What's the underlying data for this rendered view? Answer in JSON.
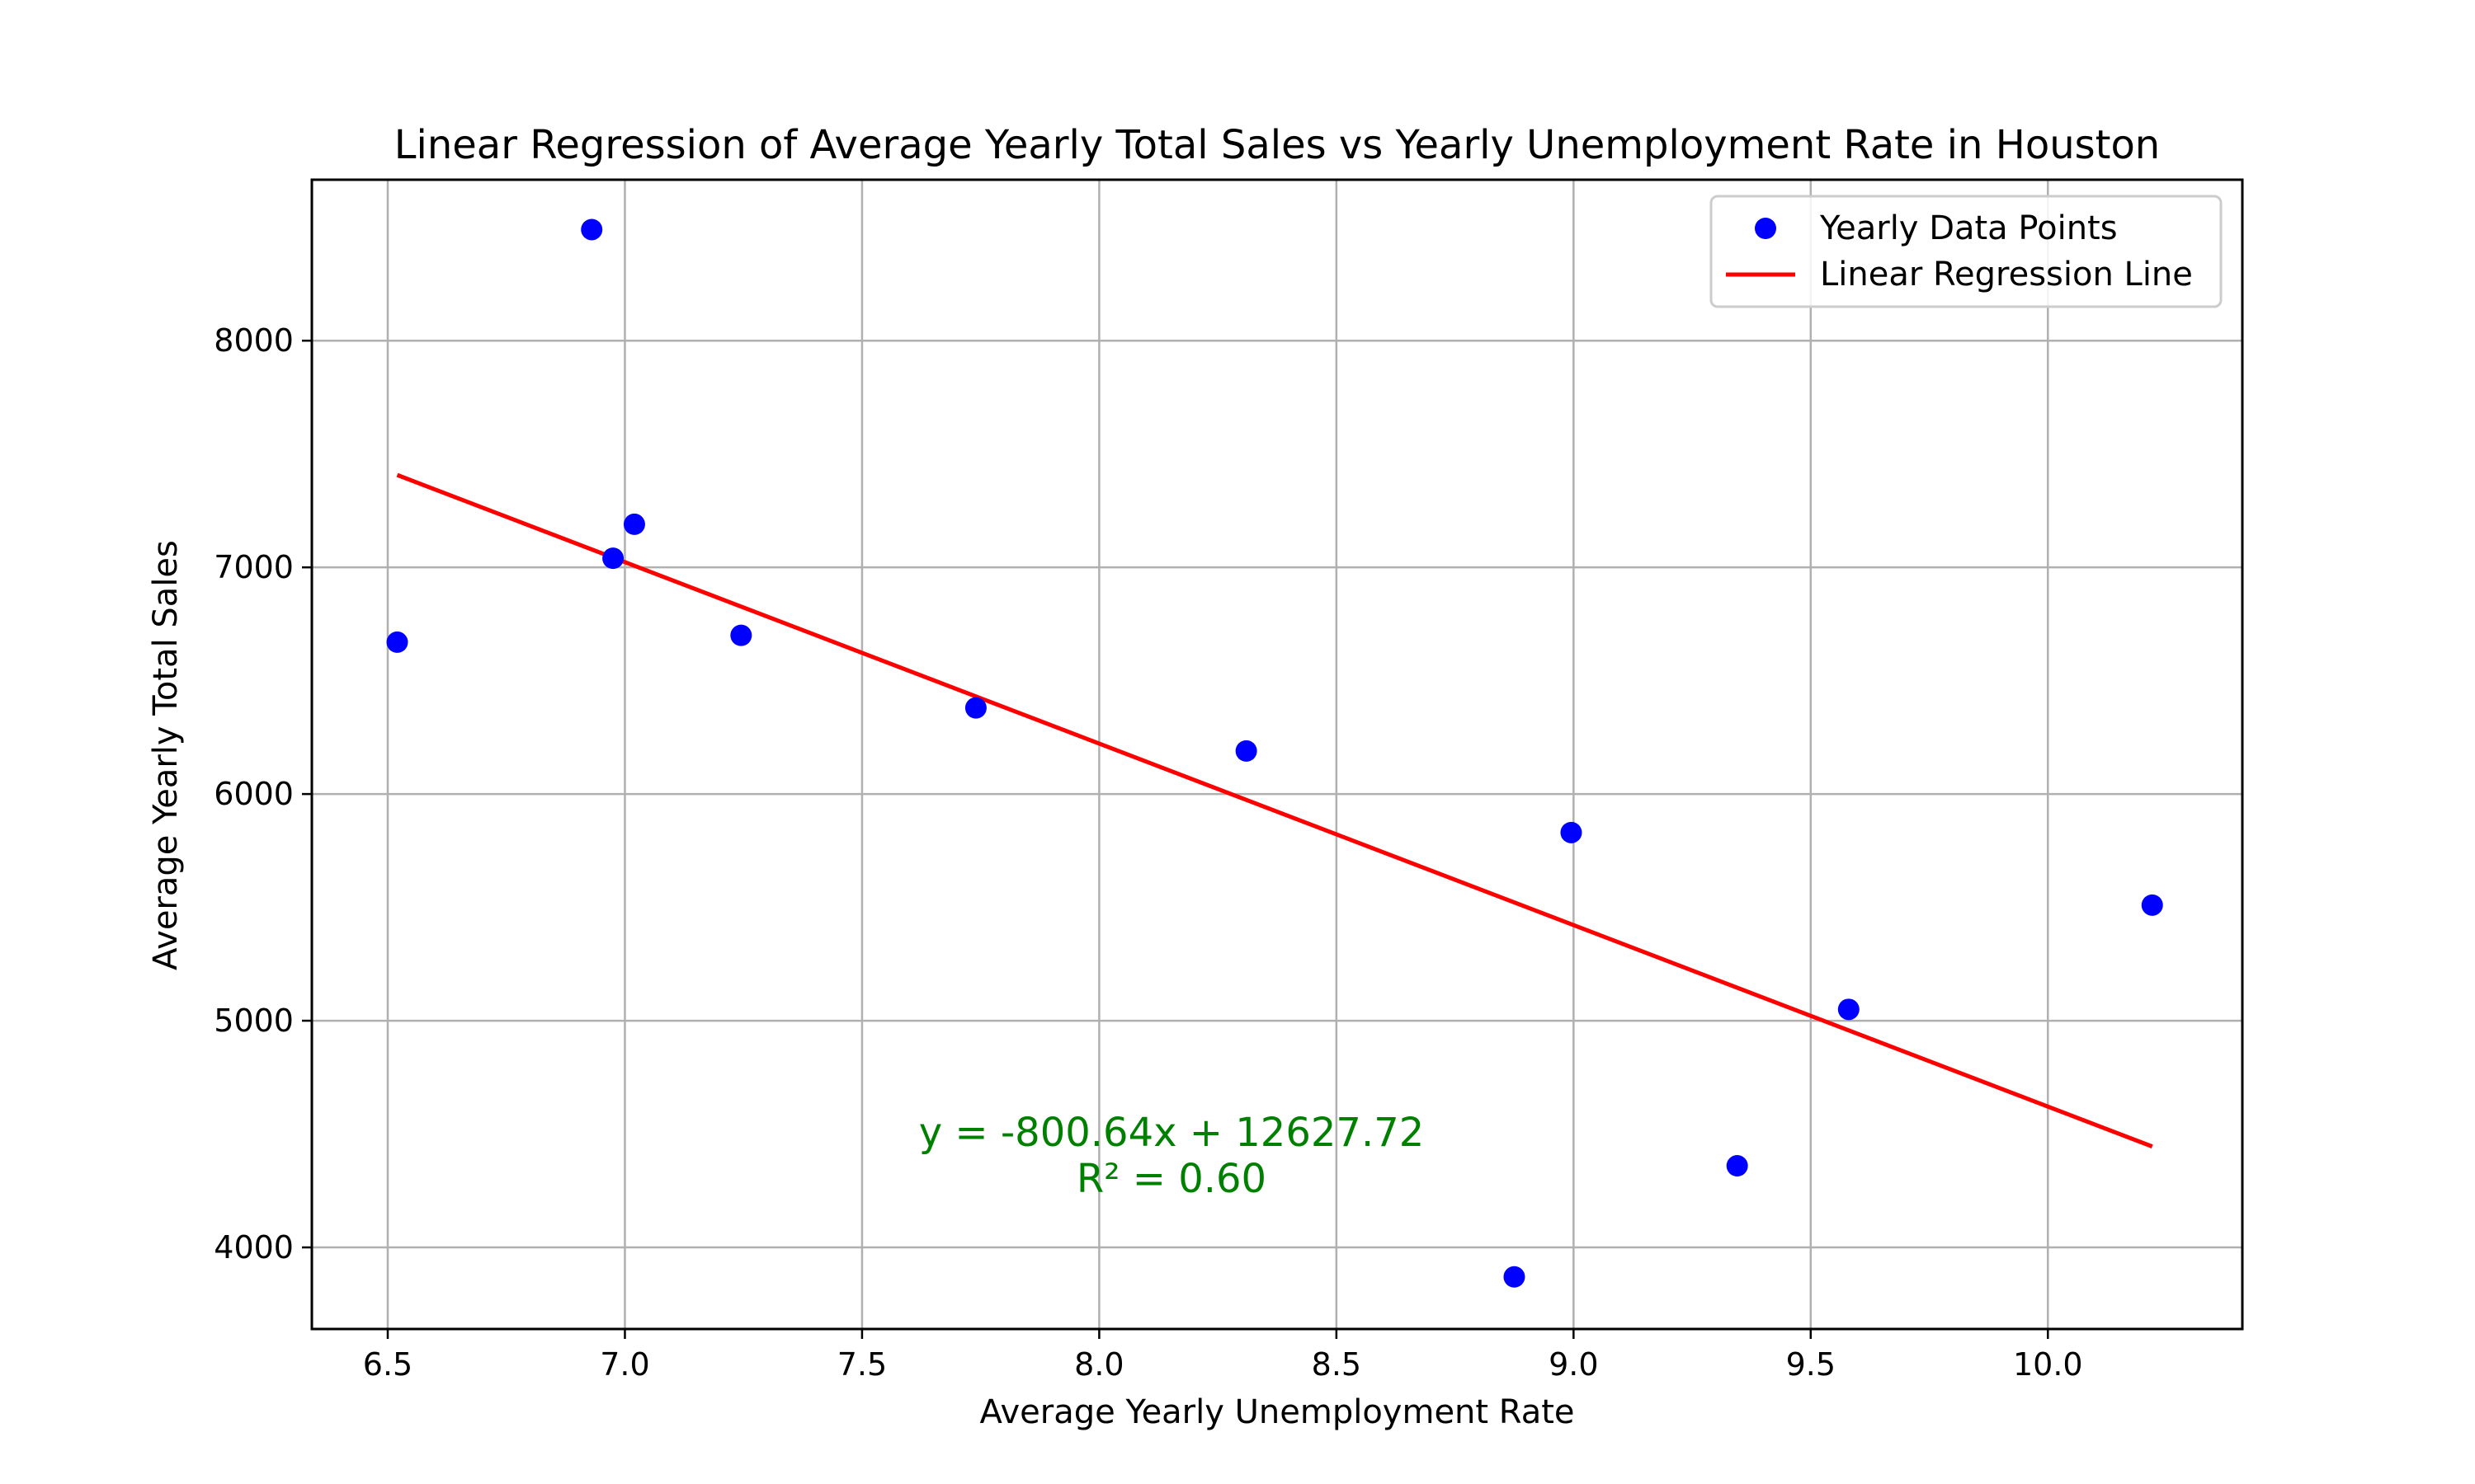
{
  "chart_data": {
    "type": "scatter",
    "title": "Linear Regression of Average Yearly Total Sales vs Yearly Unemployment Rate in Houston",
    "xlabel": "Average Yearly Unemployment Rate",
    "ylabel": "Average Yearly Total Sales",
    "xlim": [
      6.34,
      10.41
    ],
    "ylim": [
      3640,
      8710
    ],
    "xticks": [
      6.5,
      7.0,
      7.5,
      8.0,
      8.5,
      9.0,
      9.5,
      10.0
    ],
    "xtick_labels": [
      "6.5",
      "7.0",
      "7.5",
      "8.0",
      "8.5",
      "9.0",
      "9.5",
      "10.0"
    ],
    "yticks": [
      4000,
      5000,
      6000,
      7000,
      8000
    ],
    "ytick_labels": [
      "4000",
      "5000",
      "6000",
      "7000",
      "8000"
    ],
    "grid": true,
    "legend_position": "upper-right",
    "series": [
      {
        "name": "Yearly Data Points",
        "kind": "scatter",
        "color": "#0000ff",
        "points": [
          {
            "x": 6.52,
            "y": 6670
          },
          {
            "x": 6.93,
            "y": 8490
          },
          {
            "x": 6.975,
            "y": 7040
          },
          {
            "x": 7.02,
            "y": 7190
          },
          {
            "x": 7.245,
            "y": 6700
          },
          {
            "x": 7.74,
            "y": 6380
          },
          {
            "x": 8.31,
            "y": 6190
          },
          {
            "x": 8.875,
            "y": 3870
          },
          {
            "x": 8.995,
            "y": 5830
          },
          {
            "x": 9.345,
            "y": 4360
          },
          {
            "x": 9.58,
            "y": 5050
          },
          {
            "x": 10.22,
            "y": 5510
          }
        ]
      },
      {
        "name": "Linear Regression Line",
        "kind": "line",
        "color": "#ff0000",
        "points": [
          {
            "x": 6.52,
            "y": 7407.5
          },
          {
            "x": 10.22,
            "y": 4445.1
          }
        ]
      }
    ],
    "annotation": {
      "lines": [
        "y = -800.64x + 12627.72",
        "R² = 0.60"
      ],
      "color": "#008000"
    }
  }
}
